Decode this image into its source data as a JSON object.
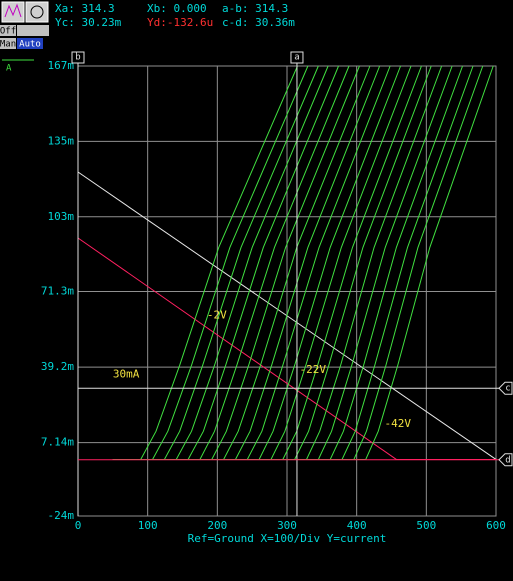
{
  "readouts": [
    {
      "text": "Xa: 314.3",
      "color": "#00d8d8"
    },
    {
      "text": "Xb: 0.000",
      "color": "#00d8d8"
    },
    {
      "text": "a-b: 314.3",
      "color": "#00d8d8"
    },
    {
      "text": "Yc: 30.23m",
      "color": "#00d8d8"
    },
    {
      "text": "Yd:-132.6u",
      "color": "#ff3030"
    },
    {
      "text": "c-d: 30.36m",
      "color": "#00d8d8"
    }
  ],
  "buttons": [
    "Off",
    "Man",
    "Auto"
  ],
  "chart_data": {
    "type": "line",
    "legend": "A",
    "xlabel": "Ref=Ground  X=100/Div Y=current",
    "xlim": [
      0,
      600
    ],
    "xticks": [
      0,
      100,
      200,
      300,
      400,
      500,
      600
    ],
    "ylim": [
      -0.024,
      0.167
    ],
    "yticks": [
      {
        "value": -0.024,
        "label": "-24m"
      },
      {
        "value": 0.00714,
        "label": "7.14m"
      },
      {
        "value": 0.0392,
        "label": "39.2m"
      },
      {
        "value": 0.0713,
        "label": "71.3m"
      },
      {
        "value": 0.103,
        "label": "103m"
      },
      {
        "value": 0.135,
        "label": "135m"
      },
      {
        "value": 0.167,
        "label": "167m"
      }
    ],
    "grid": true,
    "cursors": [
      {
        "label": "a",
        "axis": "x",
        "value": 314.3
      },
      {
        "label": "b",
        "axis": "x",
        "value": 0
      },
      {
        "label": "c",
        "axis": "y",
        "value": 0.03023
      },
      {
        "label": "d",
        "axis": "y",
        "value": -0.0001326
      }
    ],
    "annotations": [
      {
        "text": "-2V",
        "x": 185,
        "y": 0.061
      },
      {
        "text": "-22V",
        "x": 318,
        "y": 0.038
      },
      {
        "text": "-42V",
        "x": 440,
        "y": 0.015
      },
      {
        "text": "30mA",
        "x": 50,
        "y": 0.036
      }
    ],
    "series": [
      {
        "color": "#e8e8e8",
        "x": [
          0,
          600
        ],
        "values": [
          0.122,
          0
        ]
      },
      {
        "color": "#ff2060",
        "x": [
          0,
          457,
          600
        ],
        "values": [
          0.094,
          0,
          0
        ]
      },
      {
        "color": "#40e040",
        "x": [
          50,
          90,
          112,
          146,
          202,
          315
        ],
        "values": [
          0,
          0,
          0.012,
          0.04,
          0.09,
          0.167
        ]
      },
      {
        "color": "#40e040",
        "x": [
          50,
          107,
          129,
          163,
          218,
          330
        ],
        "values": [
          0,
          0,
          0.012,
          0.04,
          0.09,
          0.167
        ]
      },
      {
        "color": "#40e040",
        "x": [
          50,
          124,
          146,
          179,
          234,
          345
        ],
        "values": [
          0,
          0,
          0.012,
          0.04,
          0.09,
          0.167
        ]
      },
      {
        "color": "#40e040",
        "x": [
          50,
          141,
          163,
          196,
          250,
          359
        ],
        "values": [
          0,
          0,
          0.012,
          0.04,
          0.09,
          0.167
        ]
      },
      {
        "color": "#40e040",
        "x": [
          50,
          158,
          180,
          212,
          266,
          374
        ],
        "values": [
          0,
          0,
          0.012,
          0.04,
          0.09,
          0.167
        ]
      },
      {
        "color": "#40e040",
        "x": [
          50,
          175,
          196,
          228,
          282,
          389
        ],
        "values": [
          0,
          0,
          0.012,
          0.04,
          0.09,
          0.167
        ]
      },
      {
        "color": "#40e040",
        "x": [
          50,
          192,
          213,
          245,
          298,
          404
        ],
        "values": [
          0,
          0,
          0.012,
          0.04,
          0.09,
          0.167
        ]
      },
      {
        "color": "#40e040",
        "x": [
          50,
          209,
          230,
          262,
          314,
          419
        ],
        "values": [
          0,
          0,
          0.012,
          0.04,
          0.09,
          0.167
        ]
      },
      {
        "color": "#40e040",
        "x": [
          50,
          226,
          247,
          278,
          330,
          433
        ],
        "values": [
          0,
          0,
          0.012,
          0.04,
          0.09,
          0.167
        ]
      },
      {
        "color": "#40e040",
        "x": [
          50,
          243,
          264,
          294,
          346,
          448
        ],
        "values": [
          0,
          0,
          0.012,
          0.04,
          0.09,
          0.167
        ]
      },
      {
        "color": "#40e040",
        "x": [
          50,
          260,
          280,
          311,
          362,
          463
        ],
        "values": [
          0,
          0,
          0.012,
          0.04,
          0.09,
          0.167
        ]
      },
      {
        "color": "#40e040",
        "x": [
          50,
          277,
          297,
          327,
          378,
          478
        ],
        "values": [
          0,
          0,
          0.012,
          0.04,
          0.09,
          0.167
        ]
      },
      {
        "color": "#40e040",
        "x": [
          50,
          294,
          314,
          344,
          394,
          493
        ],
        "values": [
          0,
          0,
          0.012,
          0.04,
          0.09,
          0.167
        ]
      },
      {
        "color": "#40e040",
        "x": [
          50,
          311,
          331,
          360,
          409,
          507
        ],
        "values": [
          0,
          0,
          0.012,
          0.04,
          0.09,
          0.167
        ]
      },
      {
        "color": "#40e040",
        "x": [
          50,
          328,
          347,
          377,
          425,
          522
        ],
        "values": [
          0,
          0,
          0.012,
          0.04,
          0.09,
          0.167
        ]
      },
      {
        "color": "#40e040",
        "x": [
          50,
          345,
          364,
          393,
          441,
          537
        ],
        "values": [
          0,
          0,
          0.012,
          0.04,
          0.09,
          0.167
        ]
      },
      {
        "color": "#40e040",
        "x": [
          50,
          362,
          381,
          410,
          457,
          552
        ],
        "values": [
          0,
          0,
          0.012,
          0.04,
          0.09,
          0.167
        ]
      },
      {
        "color": "#40e040",
        "x": [
          50,
          379,
          398,
          426,
          473,
          567
        ],
        "values": [
          0,
          0,
          0.012,
          0.04,
          0.09,
          0.167
        ]
      },
      {
        "color": "#40e040",
        "x": [
          50,
          396,
          414,
          442,
          488,
          581
        ],
        "values": [
          0,
          0,
          0.012,
          0.04,
          0.09,
          0.167
        ]
      },
      {
        "color": "#40e040",
        "x": [
          50,
          413,
          431,
          459,
          505,
          596
        ],
        "values": [
          0,
          0,
          0.012,
          0.04,
          0.09,
          0.167
        ]
      }
    ]
  }
}
